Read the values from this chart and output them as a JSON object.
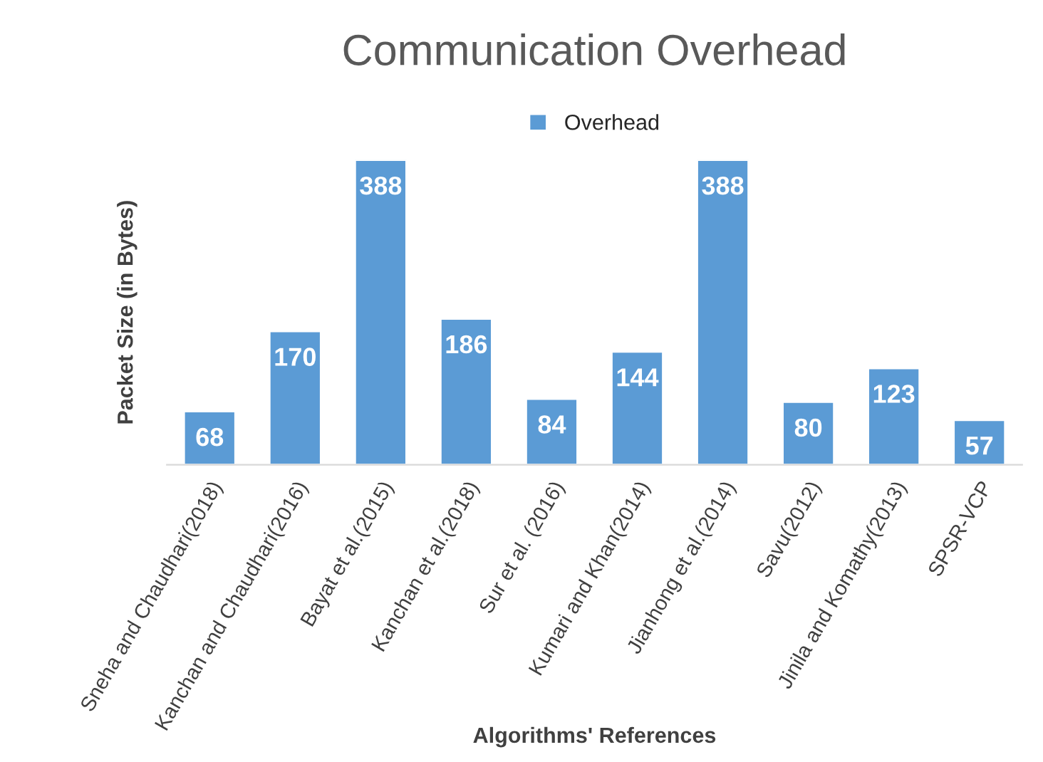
{
  "chart_data": {
    "type": "bar",
    "title": "Communication Overhead",
    "xlabel": "Algorithms' References",
    "ylabel": "Packet Size (in Bytes)",
    "categories": [
      "Sneha and Chaudhari(2018)",
      "Kanchan and Chaudhari(2016)",
      "Bayat et al.(2015)",
      "Kanchan et al.(2018)",
      "Sur et al. (2016)",
      "Kumari and Khan(2014)",
      "Jianhong et al.(2014)",
      "Savu(2012)",
      "Jinila and Komathy(2013)",
      "SPSR-VCP"
    ],
    "series": [
      {
        "name": "Overhead",
        "color": "#5b9bd5",
        "values": [
          68,
          170,
          388,
          186,
          84,
          144,
          388,
          80,
          123,
          57
        ]
      }
    ],
    "data_labels": true,
    "legend": "top",
    "grid": false
  }
}
